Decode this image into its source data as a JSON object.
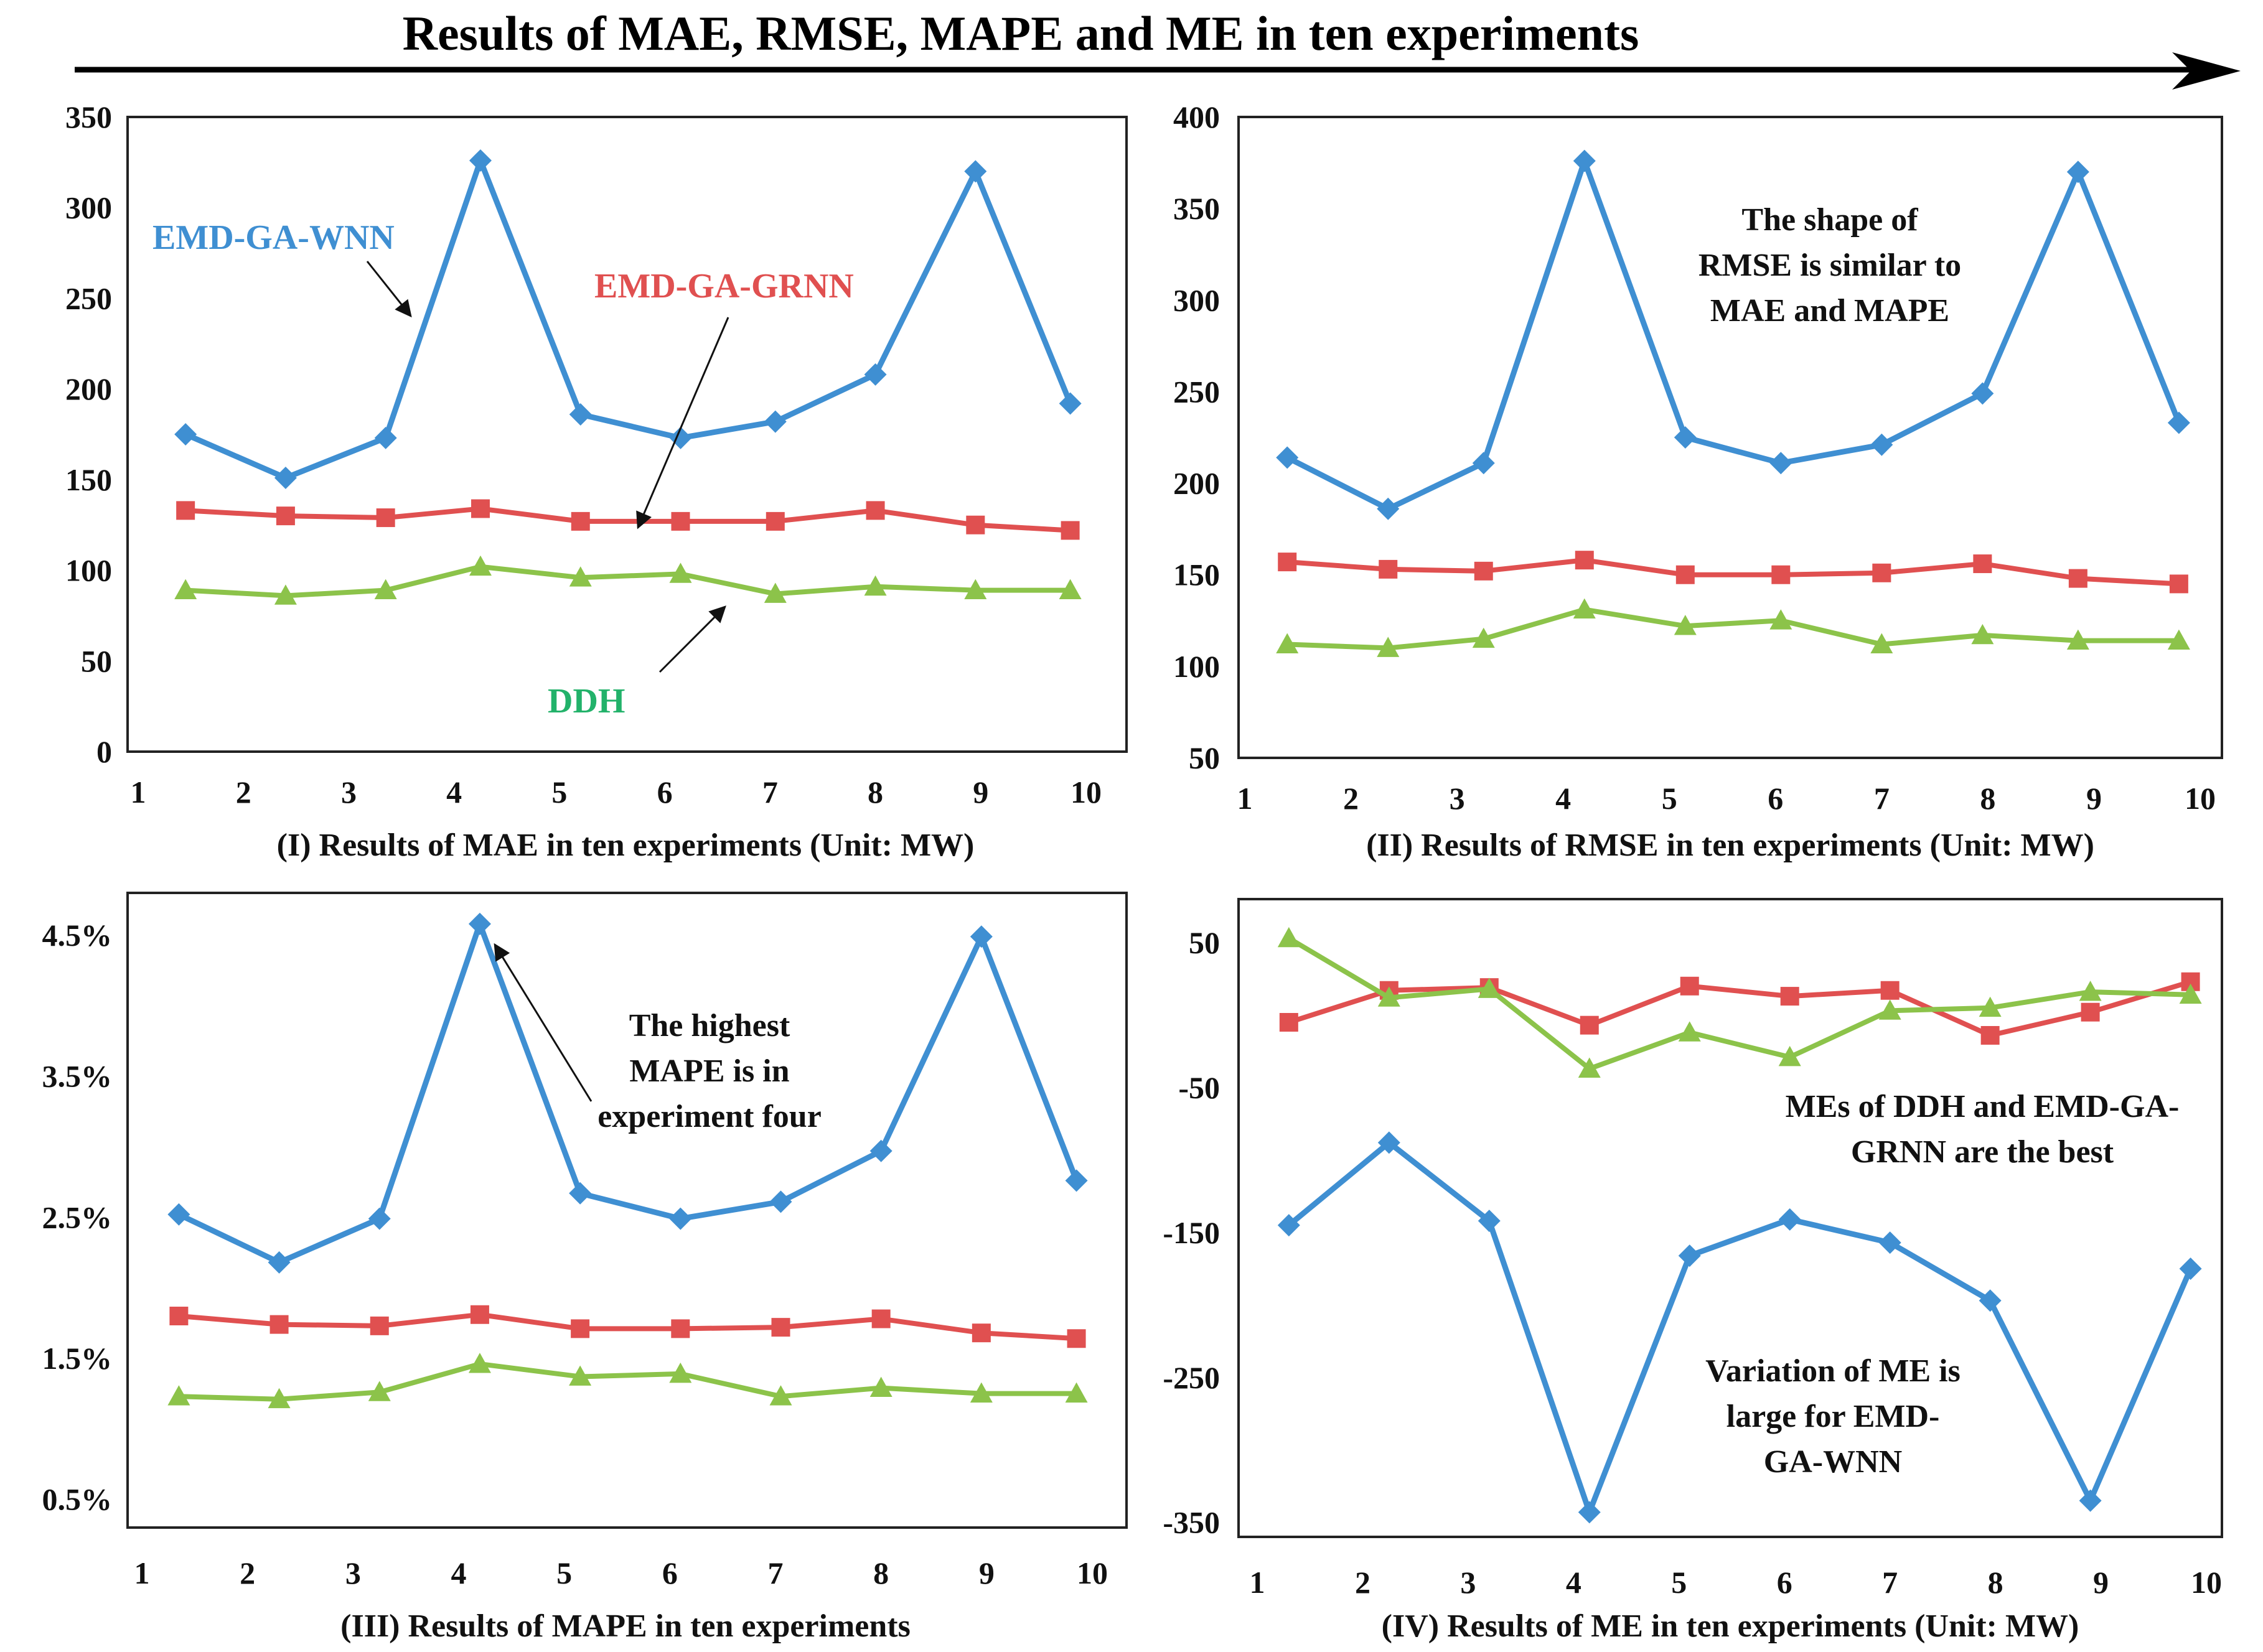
{
  "figure": {
    "title": "Results of MAE, RMSE, MAPE and ME in ten experiments"
  },
  "colors": {
    "EMD-GA-WNN": "#3f8fd2",
    "EMD-GA-GRNN": "#e05050",
    "DDH": "#8cc34a",
    "DDH_label": "#22b26a"
  },
  "chart_data": [
    {
      "id": "mae",
      "type": "line",
      "caption": "(I) Results of MAE in ten experiments (Unit: MW)",
      "x_ticks": [
        "1",
        "2",
        "3",
        "4",
        "5",
        "6",
        "7",
        "8",
        "9",
        "10"
      ],
      "xlim": [
        1,
        10
      ],
      "ylim": [
        0,
        350
      ],
      "y_ticks": [
        0,
        50,
        100,
        150,
        200,
        250,
        300,
        350
      ],
      "y_tick_labels": [
        "0",
        "50",
        "100",
        "150",
        "200",
        "250",
        "300",
        "350"
      ],
      "x": [
        1.45,
        2.4,
        3.35,
        4.25,
        5.2,
        6.15,
        7.05,
        8.0,
        8.95,
        9.85
      ],
      "series": [
        {
          "name": "EMD-GA-WNN",
          "values": [
            175,
            151,
            173,
            326,
            186,
            173,
            182,
            208,
            320,
            192
          ]
        },
        {
          "name": "EMD-GA-GRNN",
          "values": [
            133,
            130,
            129,
            134,
            127,
            127,
            127,
            133,
            125,
            122
          ]
        },
        {
          "name": "DDH",
          "values": [
            89,
            86,
            89,
            102,
            96,
            98,
            87,
            91,
            89,
            89
          ]
        }
      ],
      "series_labels": [
        "EMD-GA-WNN",
        "EMD-GA-GRNN",
        "DDH"
      ],
      "annotations": []
    },
    {
      "id": "rmse",
      "type": "line",
      "caption": "(II) Results of RMSE in ten experiments (Unit: MW)",
      "x_ticks": [
        "1",
        "2",
        "3",
        "4",
        "5",
        "6",
        "7",
        "8",
        "9",
        "10"
      ],
      "xlim": [
        1,
        10
      ],
      "ylim": [
        50,
        400
      ],
      "y_ticks": [
        50,
        100,
        150,
        200,
        250,
        300,
        350,
        400
      ],
      "y_tick_labels": [
        "50",
        "100",
        "150",
        "200",
        "250",
        "300",
        "350",
        "400"
      ],
      "x": [
        1.4,
        2.35,
        3.25,
        4.2,
        5.15,
        6.05,
        7.0,
        7.95,
        8.85,
        9.8
      ],
      "series": [
        {
          "name": "EMD-GA-WNN",
          "values": [
            214,
            186,
            211,
            376,
            225,
            211,
            221,
            249,
            370,
            233
          ]
        },
        {
          "name": "EMD-GA-GRNN",
          "values": [
            157,
            153,
            152,
            158,
            150,
            150,
            151,
            156,
            148,
            145
          ]
        },
        {
          "name": "DDH",
          "values": [
            112,
            110,
            115,
            131,
            122,
            125,
            112,
            117,
            114,
            114
          ]
        }
      ],
      "series_labels": [],
      "annotations": [
        "The shape of",
        "RMSE is similar to",
        "MAE and MAPE"
      ]
    },
    {
      "id": "mape",
      "type": "line",
      "caption": "(III) Results of MAPE in ten experiments",
      "x_ticks": [
        "1",
        "2",
        "3",
        "4",
        "5",
        "6",
        "7",
        "8",
        "9",
        "10"
      ],
      "xlim": [
        1,
        10
      ],
      "ylim": [
        0.3,
        4.8
      ],
      "y_ticks": [
        0.5,
        1.5,
        2.5,
        3.5,
        4.5
      ],
      "y_tick_labels": [
        "0.5%",
        "1.5%",
        "2.5%",
        "3.5%",
        "4.5%"
      ],
      "x": [
        1.35,
        2.3,
        3.25,
        4.2,
        5.15,
        6.1,
        7.05,
        8.0,
        8.95,
        9.85
      ],
      "series": [
        {
          "name": "EMD-GA-WNN",
          "values": [
            2.52,
            2.18,
            2.49,
            4.58,
            2.67,
            2.49,
            2.61,
            2.97,
            4.49,
            2.76
          ]
        },
        {
          "name": "EMD-GA-GRNN",
          "values": [
            1.8,
            1.74,
            1.73,
            1.81,
            1.71,
            1.71,
            1.72,
            1.78,
            1.68,
            1.64
          ]
        },
        {
          "name": "DDH",
          "values": [
            1.23,
            1.21,
            1.26,
            1.46,
            1.37,
            1.39,
            1.23,
            1.29,
            1.25,
            1.25
          ]
        }
      ],
      "series_labels": [],
      "annotations": [
        "The highest",
        "MAPE is in",
        "experiment four"
      ]
    },
    {
      "id": "me",
      "type": "line",
      "caption": "(IV) Results of ME in ten experiments (Unit: MW)",
      "x_ticks": [
        "1",
        "2",
        "3",
        "4",
        "5",
        "6",
        "7",
        "8",
        "9",
        "10"
      ],
      "xlim": [
        1,
        10
      ],
      "ylim": [
        -360,
        80
      ],
      "y_ticks": [
        -350,
        -250,
        -150,
        -50,
        50
      ],
      "y_tick_labels": [
        "-350",
        "-250",
        "-150",
        "-50",
        "50"
      ],
      "x": [
        1.3,
        2.25,
        3.2,
        4.15,
        5.1,
        6.05,
        7.0,
        7.95,
        8.9,
        9.85
      ],
      "series": [
        {
          "name": "EMD-GA-WNN",
          "values": [
            -145,
            -88,
            -142,
            -343,
            -166,
            -141,
            -157,
            -197,
            -335,
            -175
          ]
        },
        {
          "name": "EMD-GA-GRNN",
          "values": [
            -5,
            17,
            19,
            -7,
            20,
            13,
            17,
            -14,
            2,
            23
          ]
        },
        {
          "name": "DDH",
          "values": [
            53,
            12,
            18,
            -37,
            -12,
            -29,
            3,
            5,
            16,
            14
          ]
        }
      ],
      "series_labels": [],
      "annotations": [
        "MEs of DDH and EMD-GA-",
        "GRNN are the best",
        "Variation of ME is",
        "large  for EMD-",
        "GA-WNN"
      ]
    }
  ]
}
